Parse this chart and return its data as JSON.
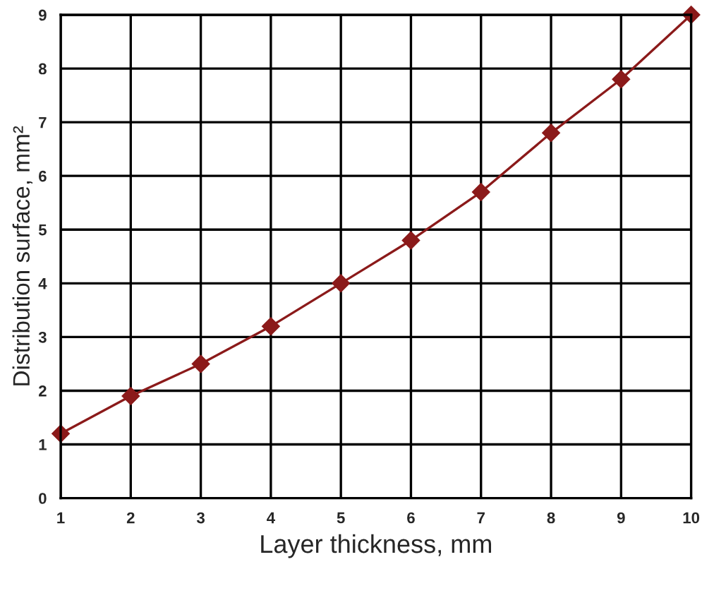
{
  "chart_data": {
    "type": "line",
    "xlabel": "Layer thickness, mm",
    "ylabel": "Distribution surface, mm²",
    "x": [
      1,
      2,
      3,
      4,
      5,
      6,
      7,
      8,
      9,
      10
    ],
    "series": [
      {
        "color": "#8b1a1a",
        "values": [
          1.2,
          1.9,
          2.5,
          3.2,
          4.0,
          4.8,
          5.7,
          6.8,
          7.8,
          9.0
        ]
      }
    ],
    "xlim": [
      1,
      10
    ],
    "xticks": [
      1,
      2,
      3,
      4,
      5,
      6,
      7,
      8,
      9,
      10
    ],
    "ylim": [
      0,
      9
    ],
    "yticks": [
      0,
      1,
      2,
      3,
      4,
      5,
      6,
      7,
      8,
      9
    ],
    "grid": true,
    "marker": "diamond",
    "line_style": "solid",
    "legend": false
  }
}
